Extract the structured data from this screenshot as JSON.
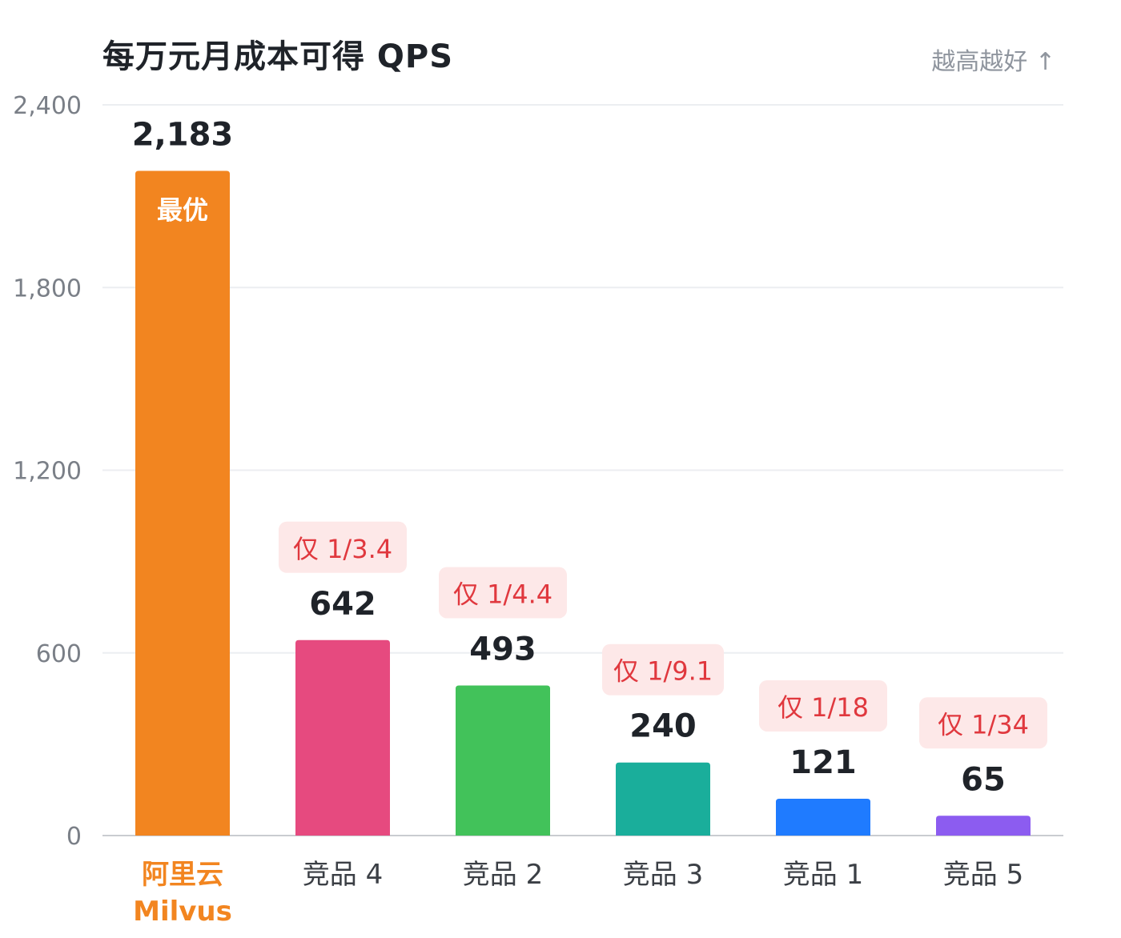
{
  "title": "每万元月成本可得 QPS",
  "hint": "越高越好 ↑",
  "chart_data": {
    "type": "bar",
    "categories": [
      [
        "阿里云",
        "Milvus"
      ],
      [
        "竞品 4"
      ],
      [
        "竞品 2"
      ],
      [
        "竞品 3"
      ],
      [
        "竞品 1"
      ],
      [
        "竞品 5"
      ]
    ],
    "values": [
      2183,
      642,
      493,
      240,
      121,
      65
    ],
    "value_labels": [
      "2,183",
      "642",
      "493",
      "240",
      "121",
      "65"
    ],
    "badges": [
      "最优",
      "仅 1/3.4",
      "仅 1/4.4",
      "仅 1/9.1",
      "仅 1/18",
      "仅 1/34"
    ],
    "colors": [
      "#f28520",
      "#e64a7f",
      "#42c25a",
      "#1aae9b",
      "#1f7bff",
      "#8c5cf0"
    ],
    "category_highlight_color": "#f28520",
    "ylim": [
      0,
      2400
    ],
    "yticks": [
      0,
      600,
      1200,
      1800,
      2400
    ],
    "ytick_labels": [
      "0",
      "600",
      "1,200",
      "1,800",
      "2,400"
    ],
    "grid": true
  }
}
